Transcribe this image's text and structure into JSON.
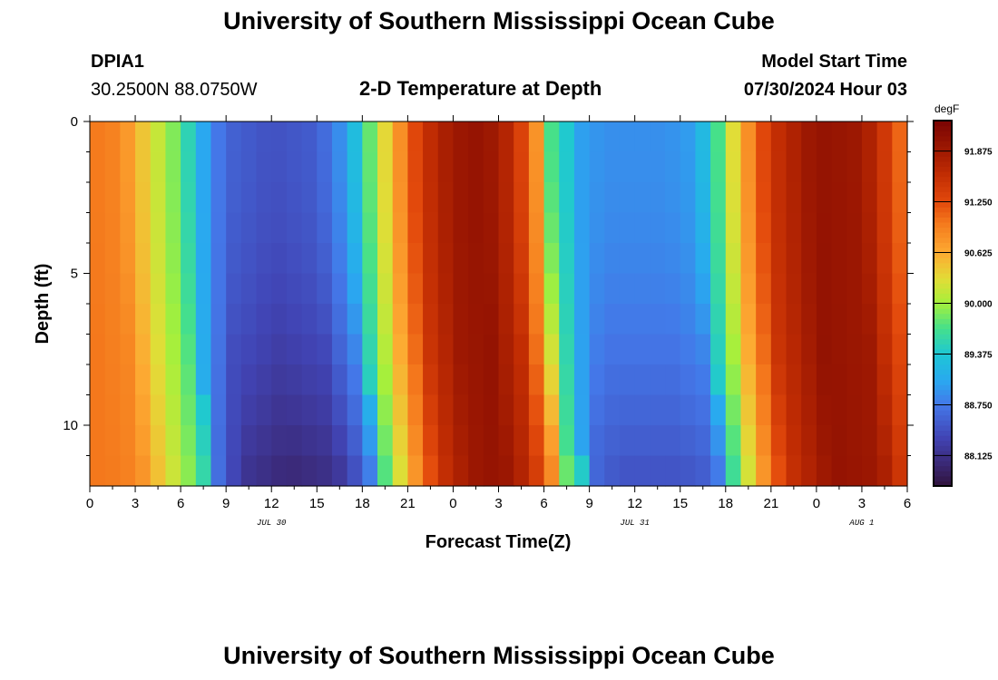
{
  "header": {
    "title": "University of Southern Mississippi Ocean Cube",
    "station": "DPIA1",
    "coords": "30.2500N  88.0750W",
    "plot_title": "2-D Temperature at Depth",
    "model_label": "Model Start Time",
    "model_time": "07/30/2024 Hour 03"
  },
  "footer": {
    "title": "University of Southern Mississippi Ocean Cube"
  },
  "chart_data": {
    "type": "heatmap",
    "title": "2-D Temperature at Depth",
    "xlabel": "Forecast Time(Z)",
    "ylabel": "Depth (ft)",
    "units": "degF",
    "x_range_hours": [
      0,
      54
    ],
    "depth_range_ft": [
      0,
      12
    ],
    "x_ticks": [
      "0",
      "3",
      "6",
      "9",
      "12",
      "15",
      "18",
      "21",
      "0",
      "3",
      "6",
      "9",
      "12",
      "15",
      "18",
      "21",
      "0",
      "3",
      "6"
    ],
    "y_ticks": [
      "0",
      "5",
      "10"
    ],
    "dates": [
      {
        "label": "JUL 30",
        "hour": 12
      },
      {
        "label": "JUL 31",
        "hour": 36
      },
      {
        "label": "AUG 1",
        "hour": 51
      }
    ],
    "colorbar": {
      "labels": [
        "91.875",
        "91.250",
        "90.625",
        "90.000",
        "89.375",
        "88.750",
        "88.125"
      ],
      "min": 87.75,
      "max": 92.25
    },
    "surface_temperature_keypoints": [
      {
        "hour": 0,
        "value": 91.0
      },
      {
        "hour": 2,
        "value": 90.9
      },
      {
        "hour": 4,
        "value": 90.3
      },
      {
        "hour": 6,
        "value": 89.75
      },
      {
        "hour": 7.5,
        "value": 89.05
      },
      {
        "hour": 9,
        "value": 88.6
      },
      {
        "hour": 12,
        "value": 88.45
      },
      {
        "hour": 15,
        "value": 88.55
      },
      {
        "hour": 17,
        "value": 89.0
      },
      {
        "hour": 18.5,
        "value": 89.8
      },
      {
        "hour": 20,
        "value": 90.6
      },
      {
        "hour": 22,
        "value": 91.5
      },
      {
        "hour": 24,
        "value": 91.9
      },
      {
        "hour": 26,
        "value": 92.0
      },
      {
        "hour": 28,
        "value": 91.6
      },
      {
        "hour": 29.5,
        "value": 90.8
      },
      {
        "hour": 30.5,
        "value": 89.7
      },
      {
        "hour": 31.5,
        "value": 89.4
      },
      {
        "hour": 32.5,
        "value": 89.0
      },
      {
        "hour": 34,
        "value": 88.9
      },
      {
        "hour": 38,
        "value": 88.9
      },
      {
        "hour": 40,
        "value": 89.0
      },
      {
        "hour": 41.5,
        "value": 89.7
      },
      {
        "hour": 43,
        "value": 90.6
      },
      {
        "hour": 45,
        "value": 91.5
      },
      {
        "hour": 48,
        "value": 92.0
      },
      {
        "hour": 51,
        "value": 91.9
      },
      {
        "hour": 53,
        "value": 91.3
      },
      {
        "hour": 54,
        "value": 90.9
      }
    ],
    "cold_trough_shift_hours_at_bottom": 1.2,
    "bottom_cooling_max_degF": 0.45,
    "colormap": [
      {
        "v": 87.75,
        "c": "#30123b"
      },
      {
        "v": 88.05,
        "c": "#3b2a7a"
      },
      {
        "v": 88.35,
        "c": "#4144b4"
      },
      {
        "v": 88.75,
        "c": "#4477e8"
      },
      {
        "v": 89.05,
        "c": "#2aa8f0"
      },
      {
        "v": 89.375,
        "c": "#1dc7d5"
      },
      {
        "v": 89.7,
        "c": "#46e08a"
      },
      {
        "v": 90.0,
        "c": "#a4f03c"
      },
      {
        "v": 90.3,
        "c": "#e1dd37"
      },
      {
        "v": 90.625,
        "c": "#fdaa32"
      },
      {
        "v": 91.0,
        "c": "#f4781c"
      },
      {
        "v": 91.25,
        "c": "#e2490c"
      },
      {
        "v": 91.6,
        "c": "#c02c03"
      },
      {
        "v": 91.875,
        "c": "#a01a02"
      },
      {
        "v": 92.25,
        "c": "#7a0403"
      }
    ]
  }
}
